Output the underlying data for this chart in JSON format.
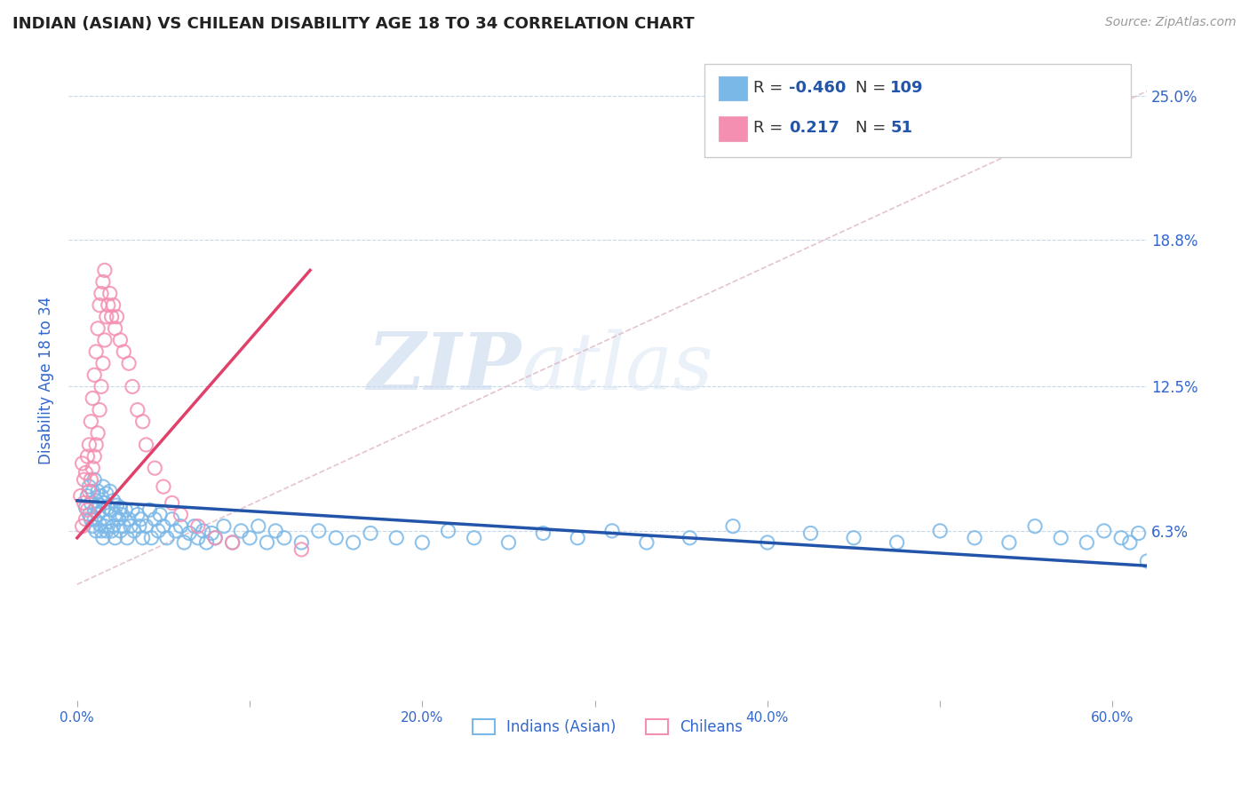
{
  "title": "INDIAN (ASIAN) VS CHILEAN DISABILITY AGE 18 TO 34 CORRELATION CHART",
  "source": "Source: ZipAtlas.com",
  "ylabel": "Disability Age 18 to 34",
  "xlim": [
    -0.005,
    0.62
  ],
  "ylim": [
    -0.01,
    0.265
  ],
  "yticks": [
    0.063,
    0.125,
    0.188,
    0.25
  ],
  "ytick_labels": [
    "6.3%",
    "12.5%",
    "18.8%",
    "25.0%"
  ],
  "xticks": [
    0.0,
    0.1,
    0.2,
    0.3,
    0.4,
    0.5,
    0.6
  ],
  "xtick_labels": [
    "0.0%",
    "",
    "20.0%",
    "",
    "40.0%",
    "",
    "60.0%"
  ],
  "blue_color": "#7ab8e8",
  "pink_color": "#f48fb1",
  "blue_line_color": "#2255aa",
  "pink_line_color": "#e0406a",
  "r_blue": -0.46,
  "n_blue": 109,
  "r_pink": 0.217,
  "n_pink": 51,
  "legend_labels": [
    "Indians (Asian)",
    "Chileans"
  ],
  "watermark_zip": "ZIP",
  "watermark_atlas": "atlas",
  "title_color": "#222222",
  "axis_label_color": "#3366cc",
  "tick_color": "#3366cc",
  "grid_color": "#c8d8ec",
  "background_color": "#ffffff",
  "ref_line_color": "#daaabb",
  "blue_scatter_x": [
    0.005,
    0.006,
    0.007,
    0.007,
    0.008,
    0.008,
    0.009,
    0.009,
    0.01,
    0.01,
    0.01,
    0.011,
    0.011,
    0.012,
    0.012,
    0.013,
    0.013,
    0.014,
    0.014,
    0.015,
    0.015,
    0.015,
    0.016,
    0.016,
    0.017,
    0.017,
    0.018,
    0.018,
    0.019,
    0.02,
    0.02,
    0.021,
    0.021,
    0.022,
    0.022,
    0.023,
    0.024,
    0.025,
    0.025,
    0.026,
    0.027,
    0.028,
    0.029,
    0.03,
    0.031,
    0.032,
    0.033,
    0.035,
    0.036,
    0.037,
    0.038,
    0.04,
    0.042,
    0.043,
    0.045,
    0.047,
    0.048,
    0.05,
    0.052,
    0.055,
    0.057,
    0.06,
    0.062,
    0.065,
    0.068,
    0.07,
    0.073,
    0.075,
    0.078,
    0.08,
    0.085,
    0.09,
    0.095,
    0.1,
    0.105,
    0.11,
    0.115,
    0.12,
    0.13,
    0.14,
    0.15,
    0.16,
    0.17,
    0.185,
    0.2,
    0.215,
    0.23,
    0.25,
    0.27,
    0.29,
    0.31,
    0.33,
    0.355,
    0.38,
    0.4,
    0.425,
    0.45,
    0.475,
    0.5,
    0.52,
    0.54,
    0.555,
    0.57,
    0.585,
    0.595,
    0.605,
    0.61,
    0.615,
    0.62
  ],
  "blue_scatter_y": [
    0.073,
    0.078,
    0.082,
    0.07,
    0.075,
    0.068,
    0.08,
    0.065,
    0.085,
    0.072,
    0.068,
    0.076,
    0.063,
    0.08,
    0.07,
    0.074,
    0.066,
    0.078,
    0.063,
    0.082,
    0.072,
    0.06,
    0.075,
    0.065,
    0.079,
    0.063,
    0.073,
    0.067,
    0.08,
    0.072,
    0.063,
    0.076,
    0.065,
    0.07,
    0.06,
    0.074,
    0.068,
    0.073,
    0.063,
    0.07,
    0.065,
    0.072,
    0.06,
    0.068,
    0.065,
    0.072,
    0.063,
    0.07,
    0.065,
    0.068,
    0.06,
    0.065,
    0.072,
    0.06,
    0.068,
    0.063,
    0.07,
    0.065,
    0.06,
    0.068,
    0.063,
    0.065,
    0.058,
    0.062,
    0.065,
    0.06,
    0.063,
    0.058,
    0.062,
    0.06,
    0.065,
    0.058,
    0.063,
    0.06,
    0.065,
    0.058,
    0.063,
    0.06,
    0.058,
    0.063,
    0.06,
    0.058,
    0.062,
    0.06,
    0.058,
    0.063,
    0.06,
    0.058,
    0.062,
    0.06,
    0.063,
    0.058,
    0.06,
    0.065,
    0.058,
    0.062,
    0.06,
    0.058,
    0.063,
    0.06,
    0.058,
    0.065,
    0.06,
    0.058,
    0.063,
    0.06,
    0.058,
    0.062,
    0.05
  ],
  "pink_scatter_x": [
    0.002,
    0.003,
    0.003,
    0.004,
    0.004,
    0.005,
    0.005,
    0.006,
    0.006,
    0.007,
    0.007,
    0.008,
    0.008,
    0.009,
    0.009,
    0.01,
    0.01,
    0.011,
    0.011,
    0.012,
    0.012,
    0.013,
    0.013,
    0.014,
    0.014,
    0.015,
    0.015,
    0.016,
    0.016,
    0.017,
    0.018,
    0.019,
    0.02,
    0.021,
    0.022,
    0.023,
    0.025,
    0.027,
    0.03,
    0.032,
    0.035,
    0.038,
    0.04,
    0.045,
    0.05,
    0.055,
    0.06,
    0.07,
    0.08,
    0.09,
    0.13
  ],
  "pink_scatter_y": [
    0.078,
    0.065,
    0.092,
    0.075,
    0.085,
    0.068,
    0.088,
    0.072,
    0.095,
    0.08,
    0.1,
    0.085,
    0.11,
    0.09,
    0.12,
    0.095,
    0.13,
    0.1,
    0.14,
    0.105,
    0.15,
    0.115,
    0.16,
    0.125,
    0.165,
    0.135,
    0.17,
    0.145,
    0.175,
    0.155,
    0.16,
    0.165,
    0.155,
    0.16,
    0.15,
    0.155,
    0.145,
    0.14,
    0.135,
    0.125,
    0.115,
    0.11,
    0.1,
    0.09,
    0.082,
    0.075,
    0.07,
    0.065,
    0.06,
    0.058,
    0.055
  ],
  "blue_trend_x": [
    0.0,
    0.62
  ],
  "blue_trend_y": [
    0.076,
    0.048
  ],
  "pink_trend_x": [
    0.0,
    0.135
  ],
  "pink_trend_y": [
    0.06,
    0.175
  ],
  "ref_line_x": [
    0.0,
    0.62
  ],
  "ref_line_y": [
    0.04,
    0.252
  ]
}
